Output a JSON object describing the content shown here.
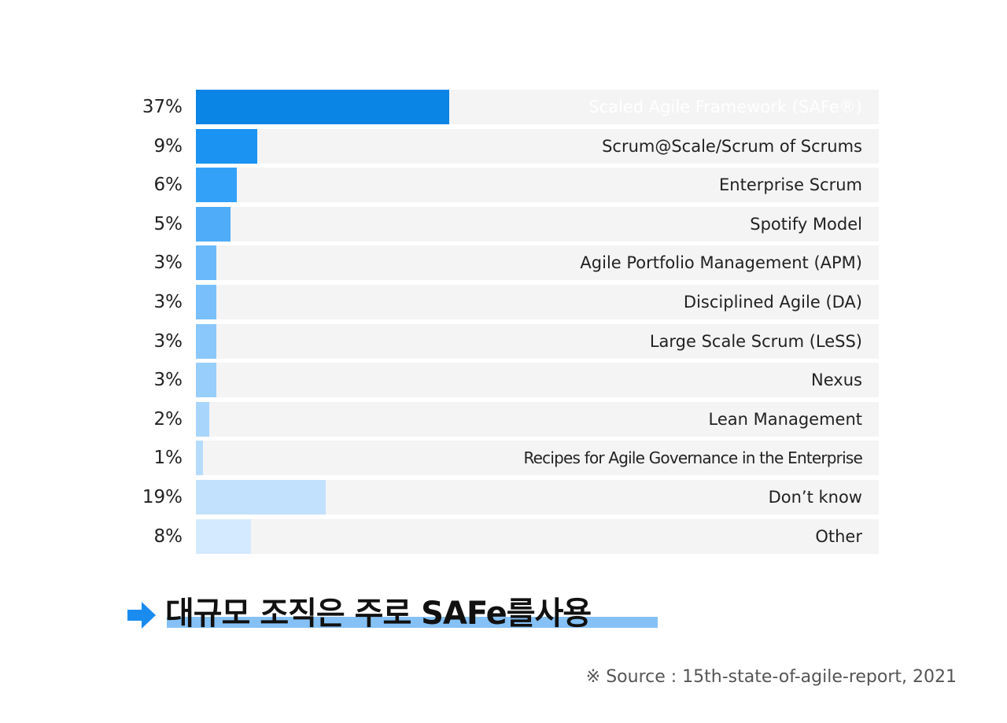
{
  "chart_data": {
    "type": "bar",
    "orientation": "horizontal",
    "categories": [
      "Scaled Agile Framework (SAFe®)",
      "Scrum@Scale/Scrum of Scrums",
      "Enterprise Scrum",
      "Spotify Model",
      "Agile Portfolio Management (APM)",
      "Disciplined Agile (DA)",
      "Large Scale Scrum (LeSS)",
      "Nexus",
      "Lean Management",
      "Recipes for Agile Governance in the Enterprise",
      "Don’t know",
      "Other"
    ],
    "values": [
      37,
      9,
      6,
      5,
      3,
      3,
      3,
      3,
      2,
      1,
      19,
      8
    ],
    "value_labels": [
      "37%",
      "9%",
      "6%",
      "5%",
      "3%",
      "3%",
      "3%",
      "3%",
      "2%",
      "1%",
      "19%",
      "8%"
    ],
    "xlim": [
      0,
      100
    ],
    "colors": [
      "#0a84e5",
      "#1a93f3",
      "#34a1f8",
      "#4eacf8",
      "#6ab9fa",
      "#78bffb",
      "#8ac8fb",
      "#98cefc",
      "#a8d5fc",
      "#b6dcfd",
      "#c2e1fd",
      "#d4eafe"
    ],
    "track_color": "#f4f4f4",
    "grid": false,
    "legend": "none"
  },
  "headline": {
    "text": "대규모 조직은 주로 SAFe를사용",
    "icon": "right-arrow-icon",
    "accent_color": "#1a8cf0",
    "underline_color": "#85c1f5"
  },
  "source": "※ Source : 15th-state-of-agile-report, 2021"
}
